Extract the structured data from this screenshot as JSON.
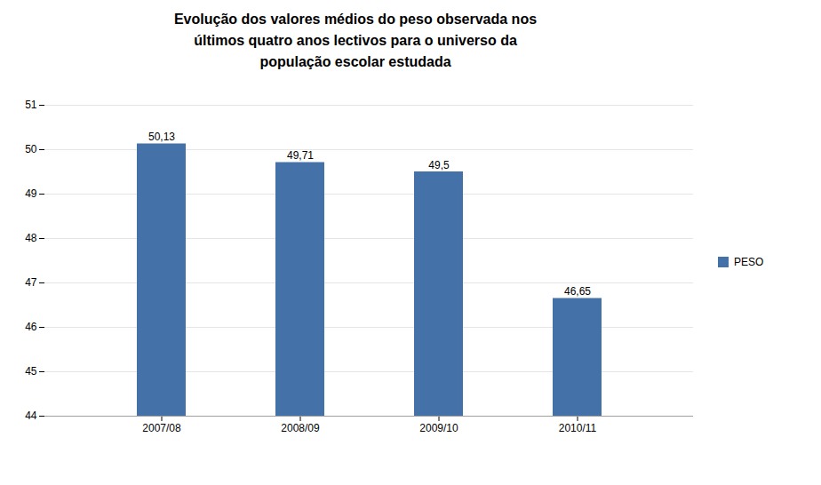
{
  "chart_data": {
    "type": "bar",
    "title": "Evolução dos valores médios do peso observada nos\núltimos quatro anos lectivos para o universo da\npopulação escolar estudada",
    "categories": [
      "2007/08",
      "2008/09",
      "2009/10",
      "2010/11"
    ],
    "series": [
      {
        "name": "PESO",
        "color": "#4472a8",
        "values": [
          50.13,
          49.71,
          49.5,
          46.65
        ],
        "value_labels": [
          "50,13",
          "49,71",
          "49,5",
          "46,65"
        ]
      }
    ],
    "ylim": [
      44,
      51
    ],
    "yticks": [
      44,
      45,
      46,
      47,
      48,
      49,
      50,
      51
    ],
    "grid": true,
    "data_labels": true,
    "legend": "right"
  }
}
